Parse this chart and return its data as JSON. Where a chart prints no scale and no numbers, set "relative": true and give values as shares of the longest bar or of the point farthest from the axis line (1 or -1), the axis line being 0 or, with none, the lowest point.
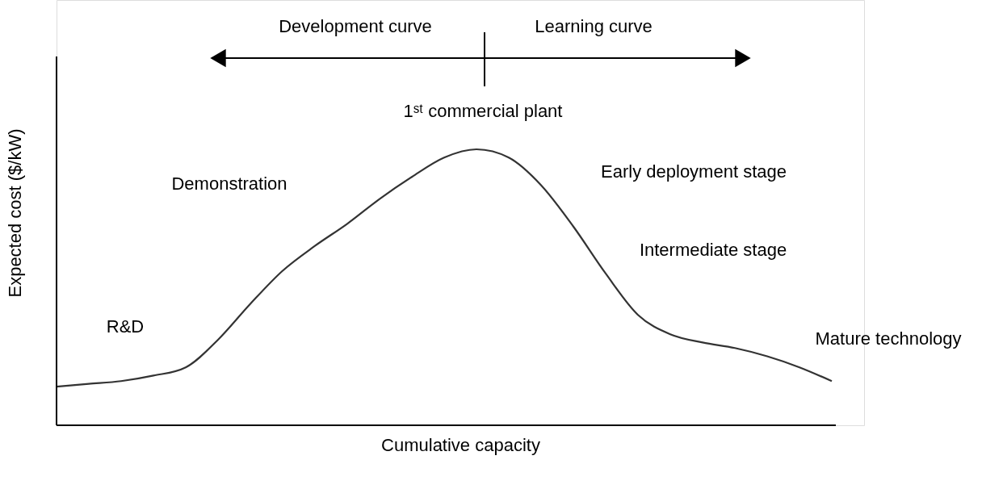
{
  "chart_data": {
    "type": "line",
    "relative": true,
    "xlabel": "Cumulative capacity",
    "ylabel": "Expected cost ($/kW)",
    "categories": [
      null,
      null,
      null,
      null,
      null,
      null,
      null,
      null,
      null,
      null,
      null,
      null,
      null,
      null,
      null,
      null,
      null,
      null,
      null,
      null,
      null,
      null,
      null,
      null,
      null
    ],
    "series": [
      {
        "color": "#333333",
        "values": [
          0.14,
          0.15,
          0.16,
          0.18,
          0.21,
          0.31,
          0.44,
          0.56,
          0.65,
          0.73,
          0.82,
          0.9,
          0.97,
          1.0,
          0.97,
          0.87,
          0.72,
          0.55,
          0.4,
          0.33,
          0.3,
          0.28,
          0.25,
          0.21,
          0.16
        ]
      }
    ],
    "annotations": [
      "Development curve",
      "Learning curve",
      "1ˢᵗ commercial plant",
      "R&D",
      "Demonstration",
      "Early deployment stage",
      "Intermediate stage",
      "Mature technology"
    ],
    "grid": false,
    "marker": "none",
    "line_style": "solid"
  }
}
